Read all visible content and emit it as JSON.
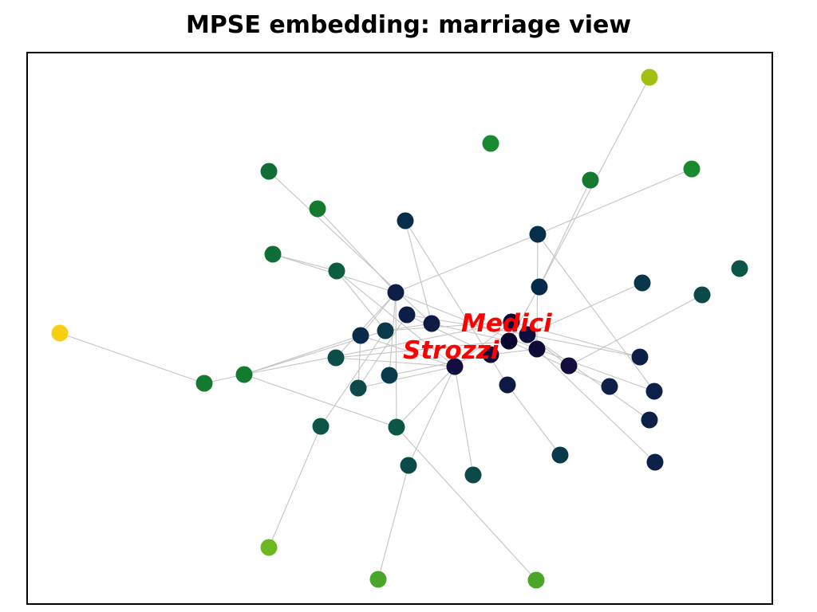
{
  "title": "MPSE embedding: marriage view",
  "highlight_labels": [
    "Medici",
    "Strozzi"
  ],
  "colors": {
    "edge": "#c4c4c4",
    "label": "#ff0000",
    "frame": "#000000"
  },
  "nodes_count": 47
}
